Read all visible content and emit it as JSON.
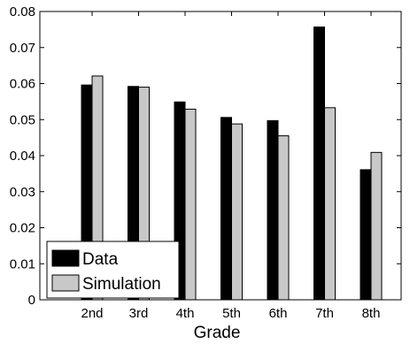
{
  "chart_data": {
    "type": "bar",
    "xlabel": "Grade",
    "ylabel": "",
    "title": "",
    "categories": [
      "2nd",
      "3rd",
      "4th",
      "5th",
      "6th",
      "7th",
      "8th"
    ],
    "series": [
      {
        "name": "Data",
        "color": "#000000",
        "values": [
          0.0596,
          0.0592,
          0.0549,
          0.0506,
          0.0497,
          0.0757,
          0.0361
        ]
      },
      {
        "name": "Simulation",
        "color": "#c8c8c8",
        "values": [
          0.0621,
          0.059,
          0.0529,
          0.0488,
          0.0455,
          0.0533,
          0.0409
        ]
      }
    ],
    "ylim": [
      0,
      0.08
    ],
    "yticks": [
      0,
      0.01,
      0.02,
      0.03,
      0.04,
      0.05,
      0.06,
      0.07,
      0.08
    ],
    "ytick_labels": [
      "0",
      "0.01",
      "0.02",
      "0.03",
      "0.04",
      "0.05",
      "0.06",
      "0.07",
      "0.08"
    ],
    "grid": false,
    "legend_position": "bottom-left"
  }
}
